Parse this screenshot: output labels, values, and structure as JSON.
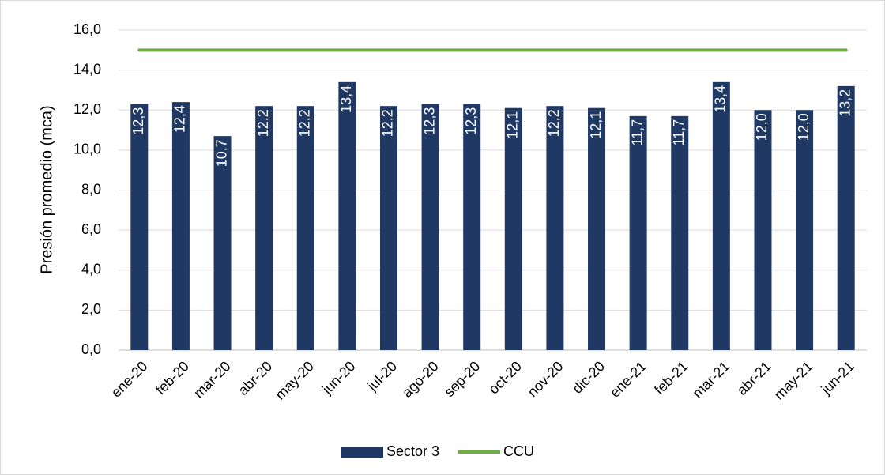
{
  "chart_data": {
    "type": "bar",
    "y_label": "Presión promedio (mca)",
    "categories": [
      "ene-20",
      "feb-20",
      "mar-20",
      "abr-20",
      "may-20",
      "jun-20",
      "jul-20",
      "ago-20",
      "sep-20",
      "oct-20",
      "nov-20",
      "dic-20",
      "ene-21",
      "feb-21",
      "mar-21",
      "abr-21",
      "may-21",
      "jun-21"
    ],
    "series": [
      {
        "name": "Sector 3",
        "type": "bar",
        "color": "#203864",
        "values": [
          12.3,
          12.4,
          10.7,
          12.2,
          12.2,
          13.4,
          12.2,
          12.3,
          12.3,
          12.1,
          12.2,
          12.1,
          11.7,
          11.7,
          13.4,
          12.0,
          12.0,
          13.2
        ],
        "value_labels": [
          "12,3",
          "12,4",
          "10,7",
          "12,2",
          "12,2",
          "13,4",
          "12,2",
          "12,3",
          "12,3",
          "12,1",
          "12,2",
          "12,1",
          "11,7",
          "11,7",
          "13,4",
          "12,0",
          "12,0",
          "13,2"
        ]
      },
      {
        "name": "CCU",
        "type": "line",
        "color": "#70ad47",
        "values": [
          15,
          15,
          15,
          15,
          15,
          15,
          15,
          15,
          15,
          15,
          15,
          15,
          15,
          15,
          15,
          15,
          15,
          15
        ]
      }
    ],
    "ylim": [
      0,
      16
    ],
    "yticks": [
      {
        "value": 0,
        "label": "0,0"
      },
      {
        "value": 2,
        "label": "2,0"
      },
      {
        "value": 4,
        "label": "4,0"
      },
      {
        "value": 6,
        "label": "6,0"
      },
      {
        "value": 8,
        "label": "8,0"
      },
      {
        "value": 10,
        "label": "10,0"
      },
      {
        "value": 12,
        "label": "12,0"
      },
      {
        "value": 14,
        "label": "14,0"
      },
      {
        "value": 16,
        "label": "16,0"
      }
    ],
    "grid": true,
    "legend": "bottom"
  }
}
